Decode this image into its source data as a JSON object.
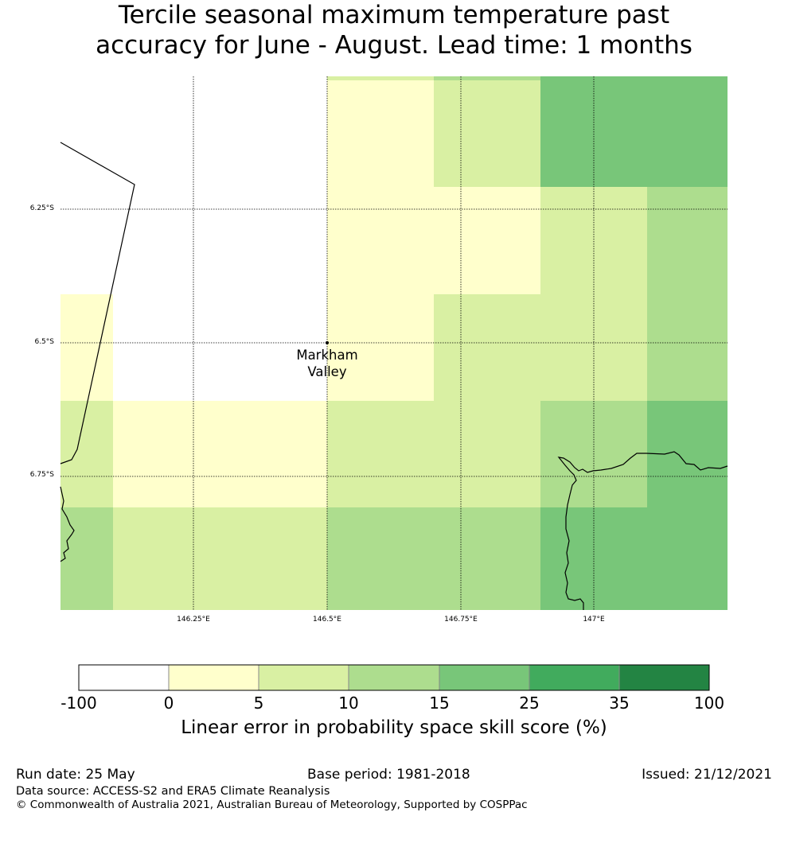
{
  "title": {
    "line1": "Tercile seasonal maximum temperature past",
    "line2": "accuracy for June - August. Lead time: 1 months"
  },
  "map": {
    "lat_labels": [
      "6.25°S",
      "6.5°S",
      "6.75°S"
    ],
    "lon_labels": [
      "146.25°E",
      "146.5°E",
      "146.75°E",
      "147°E"
    ],
    "place": {
      "line1": "Markham",
      "line2": "Valley"
    }
  },
  "colorbar": {
    "ticks": [
      "-100",
      "0",
      "5",
      "10",
      "15",
      "25",
      "35",
      "100"
    ],
    "colors": [
      "#ffffff",
      "#ffffcc",
      "#d9f0a3",
      "#addd8e",
      "#78c679",
      "#41ab5d",
      "#238443"
    ],
    "label": "Linear error in probability space skill score (%)"
  },
  "footer": {
    "run_date": "Run date: 25 May",
    "base_period": "Base period: 1981-2018",
    "issued": "Issued: 21/12/2021",
    "data_source": "Data source: ACCESS-S2 and ERA5 Climate Reanalysis",
    "copyright": "© Commonwealth of Australia 2021, Australian Bureau of Meteorology, Supported by COSPPac"
  }
}
